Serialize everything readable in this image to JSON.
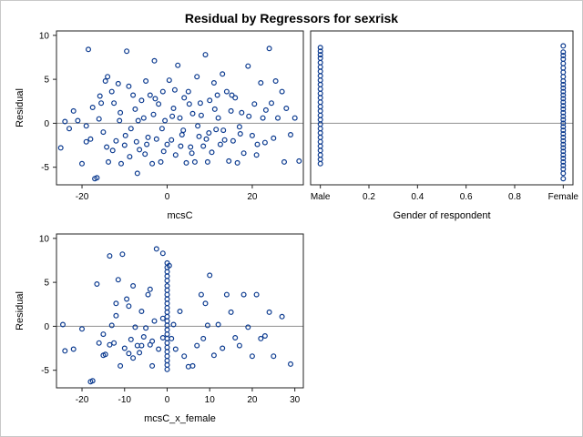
{
  "title": "Residual by Regressors for sexrisk",
  "colors": {
    "marker": "#0b3a8f",
    "reference_line": "#909090",
    "border": "#c8c8c8"
  },
  "chart_data": [
    {
      "type": "scatter",
      "xlabel": "mcsC",
      "ylabel": "Residual",
      "xlim": [
        -26,
        32
      ],
      "ylim": [
        -7,
        10.5
      ],
      "xticks": [
        "-20",
        "0",
        "20"
      ],
      "yticks": [
        "-5",
        "0",
        "5",
        "10"
      ],
      "reference_line_y": 0,
      "grid": false,
      "points": [
        [
          -25,
          -2.8
        ],
        [
          -24,
          0.2
        ],
        [
          -23,
          -0.6
        ],
        [
          -22,
          1.4
        ],
        [
          -21,
          0.3
        ],
        [
          -20,
          -4.6
        ],
        [
          -19,
          -0.3
        ],
        [
          -18.5,
          8.4
        ],
        [
          -18,
          -1.8
        ],
        [
          -17,
          -6.3
        ],
        [
          -16.5,
          -6.2
        ],
        [
          -16,
          0.5
        ],
        [
          -15.5,
          2.3
        ],
        [
          -15,
          -1
        ],
        [
          -14.5,
          4.8
        ],
        [
          -14,
          5.3
        ],
        [
          -13.8,
          -4.4
        ],
        [
          -13,
          3.6
        ],
        [
          -12.5,
          2.3
        ],
        [
          -12,
          -2
        ],
        [
          -11.5,
          4.5
        ],
        [
          -11,
          1.2
        ],
        [
          -10.8,
          -4.6
        ],
        [
          -10,
          -2.5
        ],
        [
          -9.5,
          8.2
        ],
        [
          -9,
          4.2
        ],
        [
          -8.5,
          -0.6
        ],
        [
          -8,
          3.2
        ],
        [
          -7.5,
          1.6
        ],
        [
          -7,
          -5.7
        ],
        [
          -6.5,
          -3
        ],
        [
          -6,
          2.6
        ],
        [
          -5.5,
          0.6
        ],
        [
          -5,
          4.8
        ],
        [
          -4.5,
          -1.6
        ],
        [
          -4,
          3.2
        ],
        [
          -3.5,
          -4.6
        ],
        [
          -3,
          7.1
        ],
        [
          -2.5,
          -1.8
        ],
        [
          -2,
          2.2
        ],
        [
          -1.5,
          -4.4
        ],
        [
          -1,
          3.6
        ],
        [
          -0.5,
          0.3
        ],
        [
          0,
          -2.4
        ],
        [
          0.5,
          4.9
        ],
        [
          1,
          -1.9
        ],
        [
          1.5,
          1.7
        ],
        [
          2,
          -3.6
        ],
        [
          2.5,
          6.6
        ],
        [
          3,
          0.6
        ],
        [
          3.5,
          -1.3
        ],
        [
          4,
          2.9
        ],
        [
          4.5,
          -4.5
        ],
        [
          5,
          3.6
        ],
        [
          5.5,
          -2.7
        ],
        [
          6,
          1.1
        ],
        [
          6.5,
          -4.4
        ],
        [
          7,
          5.3
        ],
        [
          7.5,
          -1.5
        ],
        [
          8,
          0.9
        ],
        [
          8.5,
          -2.6
        ],
        [
          9,
          7.8
        ],
        [
          9.5,
          -4.4
        ],
        [
          10,
          2.6
        ],
        [
          10.5,
          -3.3
        ],
        [
          11,
          4.6
        ],
        [
          11.5,
          -0.7
        ],
        [
          12,
          0.6
        ],
        [
          12.5,
          -2.4
        ],
        [
          13,
          5.6
        ],
        [
          13.5,
          -1.9
        ],
        [
          14,
          3.6
        ],
        [
          14.5,
          -4.3
        ],
        [
          15,
          1.4
        ],
        [
          15.5,
          -2
        ],
        [
          16,
          2.9
        ],
        [
          16.5,
          -4.5
        ],
        [
          17,
          -0.4
        ],
        [
          17.5,
          1.2
        ],
        [
          18,
          -3.4
        ],
        [
          19,
          6.5
        ],
        [
          20,
          -1.4
        ],
        [
          20.5,
          2.2
        ],
        [
          21,
          -3.6
        ],
        [
          22,
          4.6
        ],
        [
          22.5,
          0.6
        ],
        [
          23,
          -2.2
        ],
        [
          24,
          8.5
        ],
        [
          24.5,
          2.3
        ],
        [
          25,
          -1.7
        ],
        [
          25.5,
          4.8
        ],
        [
          26,
          0.6
        ],
        [
          27,
          3.6
        ],
        [
          27.5,
          -4.4
        ],
        [
          28,
          1.7
        ],
        [
          29,
          -1.3
        ],
        [
          30,
          0.6
        ],
        [
          31,
          -4.3
        ],
        [
          -19,
          -2.1
        ],
        [
          -17.5,
          1.8
        ],
        [
          -14.2,
          -2.7
        ],
        [
          -12.8,
          -3.1
        ],
        [
          -11.2,
          0.3
        ],
        [
          -9.8,
          -1.4
        ],
        [
          -7.2,
          -2.1
        ],
        [
          -5.2,
          -3.5
        ],
        [
          -3.2,
          1
        ],
        [
          -1.2,
          -0.6
        ],
        [
          1.2,
          0.8
        ],
        [
          3.2,
          -2.6
        ],
        [
          5.2,
          2.2
        ],
        [
          7.2,
          -0.3
        ],
        [
          9.2,
          -1.8
        ],
        [
          11.2,
          1.6
        ],
        [
          13.2,
          -0.8
        ],
        [
          15.2,
          3.2
        ],
        [
          17.2,
          -1.2
        ],
        [
          19.2,
          0.8
        ],
        [
          21.2,
          -2.4
        ],
        [
          23.2,
          1.5
        ],
        [
          -8.8,
          -3.8
        ],
        [
          -6.8,
          0.3
        ],
        [
          -4.8,
          -2.4
        ],
        [
          -2.8,
          2.8
        ],
        [
          -0.8,
          -3.2
        ],
        [
          1.8,
          3.8
        ],
        [
          3.8,
          -0.8
        ],
        [
          5.8,
          -3.4
        ],
        [
          7.8,
          2.3
        ],
        [
          9.8,
          -1.1
        ],
        [
          11.8,
          3.2
        ],
        [
          -15.8,
          3.1
        ]
      ]
    },
    {
      "type": "scatter",
      "xlabel": "Gender of respondent",
      "ylabel": "",
      "xlim": [
        -0.04,
        1.04
      ],
      "ylim": [
        -7,
        10.5
      ],
      "xticks": [
        "Male",
        "0.2",
        "0.4",
        "0.6",
        "0.8",
        "Female"
      ],
      "reference_line_y": 0,
      "grid": false,
      "points": [
        [
          0,
          8.6
        ],
        [
          0,
          8.2
        ],
        [
          0,
          7.8
        ],
        [
          0,
          7.4
        ],
        [
          0,
          6.9
        ],
        [
          0,
          6.4
        ],
        [
          0,
          5.9
        ],
        [
          0,
          5.4
        ],
        [
          0,
          4.9
        ],
        [
          0,
          4.4
        ],
        [
          0,
          3.9
        ],
        [
          0,
          3.4
        ],
        [
          0,
          2.9
        ],
        [
          0,
          2.4
        ],
        [
          0,
          1.9
        ],
        [
          0,
          1.4
        ],
        [
          0,
          0.9
        ],
        [
          0,
          0.4
        ],
        [
          0,
          -0.1
        ],
        [
          0,
          -0.6
        ],
        [
          0,
          -1.1
        ],
        [
          0,
          -1.6
        ],
        [
          0,
          -2.1
        ],
        [
          0,
          -2.6
        ],
        [
          0,
          -3.1
        ],
        [
          0,
          -3.6
        ],
        [
          0,
          -4.1
        ],
        [
          0,
          -4.6
        ],
        [
          1,
          8.8
        ],
        [
          1,
          8.1
        ],
        [
          1,
          7.7
        ],
        [
          1,
          7.3
        ],
        [
          1,
          6.8
        ],
        [
          1,
          6.3
        ],
        [
          1,
          5.8
        ],
        [
          1,
          5.3
        ],
        [
          1,
          4.8
        ],
        [
          1,
          4.4
        ],
        [
          1,
          4
        ],
        [
          1,
          3.6
        ],
        [
          1,
          3.2
        ],
        [
          1,
          2.8
        ],
        [
          1,
          2.4
        ],
        [
          1,
          2
        ],
        [
          1,
          1.6
        ],
        [
          1,
          1.2
        ],
        [
          1,
          0.8
        ],
        [
          1,
          0.4
        ],
        [
          1,
          0
        ],
        [
          1,
          -0.4
        ],
        [
          1,
          -0.8
        ],
        [
          1,
          -1.2
        ],
        [
          1,
          -1.6
        ],
        [
          1,
          -2
        ],
        [
          1,
          -2.4
        ],
        [
          1,
          -2.8
        ],
        [
          1,
          -3.2
        ],
        [
          1,
          -3.6
        ],
        [
          1,
          -4
        ],
        [
          1,
          -4.4
        ],
        [
          1,
          -4.8
        ],
        [
          1,
          -5.2
        ],
        [
          1,
          -5.7
        ],
        [
          1,
          -6.3
        ]
      ]
    },
    {
      "type": "scatter",
      "xlabel": "mcsC_x_female",
      "ylabel": "Residual",
      "xlim": [
        -26,
        32
      ],
      "ylim": [
        -7,
        10.5
      ],
      "xticks": [
        "-20",
        "-10",
        "0",
        "10",
        "20",
        "30"
      ],
      "yticks": [
        "-5",
        "0",
        "5",
        "10"
      ],
      "reference_line_y": 0,
      "grid": false,
      "points": [
        [
          -24.5,
          0.2
        ],
        [
          -24,
          -2.8
        ],
        [
          -22,
          -2.6
        ],
        [
          -20,
          -0.3
        ],
        [
          -18,
          -6.3
        ],
        [
          -17.5,
          -6.2
        ],
        [
          -16.5,
          4.8
        ],
        [
          -16,
          -1.9
        ],
        [
          -15,
          -3.3
        ],
        [
          -14.5,
          -3.2
        ],
        [
          -13.5,
          8
        ],
        [
          -13.5,
          -2.1
        ],
        [
          -13,
          0.1
        ],
        [
          -12.5,
          -1.9
        ],
        [
          -12,
          1.2
        ],
        [
          -11.5,
          5.3
        ],
        [
          -11,
          -4.5
        ],
        [
          -10.5,
          8.2
        ],
        [
          -10,
          -2.5
        ],
        [
          -9.5,
          3.1
        ],
        [
          -9,
          2.3
        ],
        [
          -8.5,
          -1.5
        ],
        [
          -8,
          -3.6
        ],
        [
          -8,
          4.6
        ],
        [
          -7.5,
          -0.1
        ],
        [
          -7,
          -2.2
        ],
        [
          -6.5,
          -3
        ],
        [
          -6,
          1.7
        ],
        [
          -5.5,
          -1.2
        ],
        [
          -5,
          -0.2
        ],
        [
          -4.5,
          3.6
        ],
        [
          -4,
          -2.1
        ],
        [
          -3.5,
          -4.5
        ],
        [
          -3.5,
          -1.7
        ],
        [
          -3,
          0.6
        ],
        [
          -2.5,
          8.8
        ],
        [
          -2,
          -2.6
        ],
        [
          -1,
          -1.3
        ],
        [
          -1,
          0.9
        ],
        [
          0,
          7.2
        ],
        [
          0,
          6.7
        ],
        [
          0,
          6.2
        ],
        [
          0,
          5.7
        ],
        [
          0,
          5.2
        ],
        [
          0,
          4.6
        ],
        [
          0,
          4.1
        ],
        [
          0,
          3.6
        ],
        [
          0,
          3.1
        ],
        [
          0,
          2.6
        ],
        [
          0,
          2.1
        ],
        [
          0,
          1.6
        ],
        [
          0,
          1.1
        ],
        [
          0,
          0.6
        ],
        [
          0,
          0.1
        ],
        [
          0,
          -0.4
        ],
        [
          0,
          -0.9
        ],
        [
          0,
          -1.4
        ],
        [
          0,
          -1.9
        ],
        [
          0,
          -2.4
        ],
        [
          0,
          -2.9
        ],
        [
          0,
          -3.4
        ],
        [
          0,
          -3.9
        ],
        [
          0,
          -4.4
        ],
        [
          0,
          -4.9
        ],
        [
          -1,
          8.3
        ],
        [
          0.5,
          6.9
        ],
        [
          1,
          -1.4
        ],
        [
          1.5,
          0.2
        ],
        [
          2,
          -2.6
        ],
        [
          3,
          1.7
        ],
        [
          4,
          -3.4
        ],
        [
          5,
          -4.6
        ],
        [
          6,
          -4.5
        ],
        [
          7,
          -2.2
        ],
        [
          8,
          3.6
        ],
        [
          8.5,
          -1.4
        ],
        [
          9,
          2.6
        ],
        [
          9.5,
          0.1
        ],
        [
          10,
          5.8
        ],
        [
          11,
          -3.3
        ],
        [
          12,
          0.2
        ],
        [
          13,
          -2.5
        ],
        [
          14,
          3.6
        ],
        [
          15,
          1.6
        ],
        [
          16,
          -1.3
        ],
        [
          17,
          -2.2
        ],
        [
          18,
          3.6
        ],
        [
          19,
          -0.1
        ],
        [
          20,
          -3.4
        ],
        [
          21,
          3.6
        ],
        [
          22,
          -1.4
        ],
        [
          23,
          -1.1
        ],
        [
          24,
          1.6
        ],
        [
          25,
          -3.4
        ],
        [
          27,
          1.1
        ],
        [
          29,
          -4.3
        ],
        [
          -6,
          -2.2
        ],
        [
          -4,
          4.2
        ],
        [
          -9,
          -3.1
        ],
        [
          -12,
          2.6
        ],
        [
          -15,
          -0.9
        ]
      ]
    }
  ]
}
